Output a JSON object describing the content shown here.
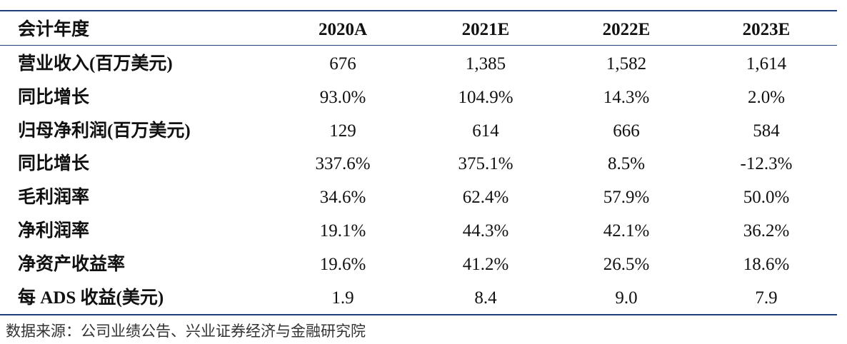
{
  "table": {
    "header": [
      "会计年度",
      "2020A",
      "2021E",
      "2022E",
      "2023E"
    ],
    "rows": [
      [
        "营业收入(百万美元)",
        "676",
        "1,385",
        "1,582",
        "1,614"
      ],
      [
        "同比增长",
        "93.0%",
        "104.9%",
        "14.3%",
        "2.0%"
      ],
      [
        "归母净利润(百万美元)",
        "129",
        "614",
        "666",
        "584"
      ],
      [
        "同比增长",
        "337.6%",
        "375.1%",
        "8.5%",
        "-12.3%"
      ],
      [
        "毛利润率",
        "34.6%",
        "62.4%",
        "57.9%",
        "50.0%"
      ],
      [
        "净利润率",
        "19.1%",
        "44.3%",
        "42.1%",
        "36.2%"
      ],
      [
        "净资产收益率",
        "19.6%",
        "41.2%",
        "26.5%",
        "18.6%"
      ],
      [
        "每 ADS 收益(美元)",
        "1.9",
        "8.4",
        "9.0",
        "7.9"
      ]
    ]
  },
  "source": "数据来源：公司业绩公告、兴业证券经济与金融研究院"
}
